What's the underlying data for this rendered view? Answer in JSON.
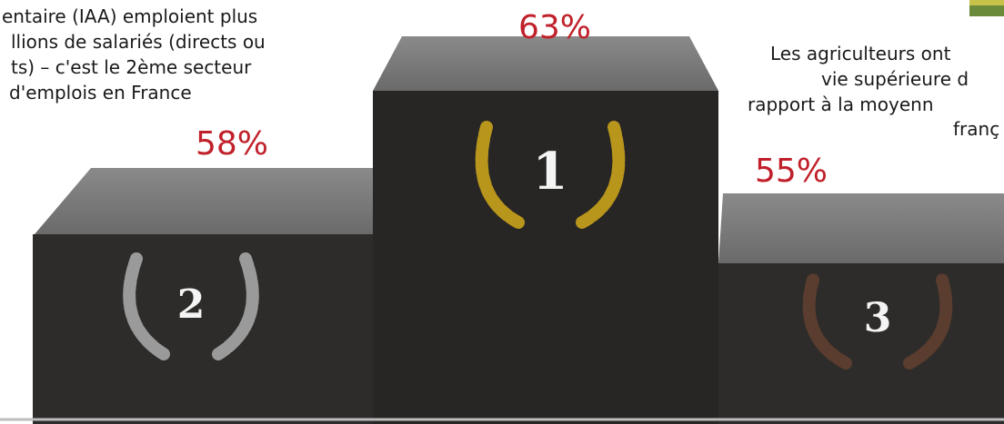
{
  "left_text": {
    "lines": [
      "entaire (IAA) emploient plus",
      "llions de salariés (directs ou",
      "ts) – c'est le 2ème secteur",
      "d'emplois en France"
    ]
  },
  "right_text": {
    "lines": [
      "Les agriculteurs ont",
      "vie supérieure d",
      "rapport à la moyenn",
      "franç"
    ]
  },
  "podium": {
    "first": {
      "rank": "1",
      "percent": "63%"
    },
    "second": {
      "rank": "2",
      "percent": "58%"
    },
    "third": {
      "rank": "3",
      "percent": "55%"
    }
  }
}
